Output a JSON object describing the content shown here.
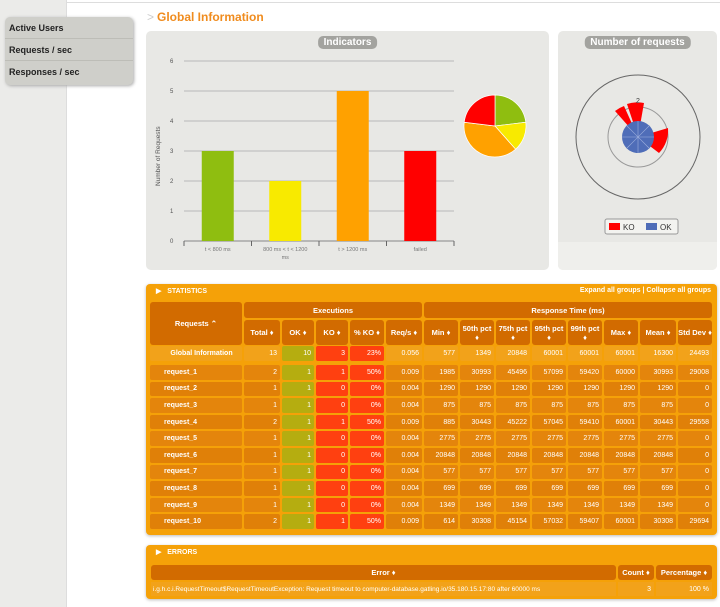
{
  "menu": [
    "Active Users",
    "Requests / sec",
    "Responses / sec"
  ],
  "page_title": "Global Information",
  "indicators": {
    "title": "Indicators"
  },
  "number_of_requests": {
    "title": "Number of requests",
    "label_2": "2",
    "legend": [
      "KO",
      "OK"
    ],
    "colors": {
      "KO": "#ff0000",
      "OK": "#4572a7"
    }
  },
  "chart_data": {
    "type": "bar",
    "title": "Indicators",
    "ylabel": "Number of Requests",
    "xlabel": "",
    "ylim": [
      0,
      6
    ],
    "yticks": [
      "0",
      "1",
      "2",
      "3",
      "4",
      "5",
      "6"
    ],
    "categories": [
      "t < 800 ms",
      "800 ms < t < 1200 ms",
      "t > 1200 ms",
      "failed"
    ],
    "values": [
      3,
      2,
      5,
      3
    ],
    "colors": [
      "#8fbe10",
      "#f8ea00",
      "#ffa100",
      "#ff0000"
    ]
  },
  "statistics": {
    "label": "STATISTICS",
    "expand": "Expand all groups",
    "sep": "|",
    "collapse": "Collapse all groups",
    "group_exec": "Executions",
    "group_resp": "Response Time (ms)",
    "headers": [
      "Requests ⌃",
      "Total ♦",
      "OK ♦",
      "KO ♦",
      "% KO ♦",
      "Req/s ♦",
      "Min ♦",
      "50th pct ♦",
      "75th pct ♦",
      "95th pct ♦",
      "99th pct ♦",
      "Max ♦",
      "Mean ♦",
      "Std Dev ♦"
    ],
    "rows": [
      [
        "Global Information",
        "13",
        "10",
        "3",
        "23%",
        "0.056",
        "577",
        "1349",
        "20848",
        "60001",
        "60001",
        "60001",
        "16300",
        "24493"
      ],
      [
        "request_1",
        "2",
        "1",
        "1",
        "50%",
        "0.009",
        "1985",
        "30993",
        "45496",
        "57099",
        "59420",
        "60000",
        "30993",
        "29008"
      ],
      [
        "request_2",
        "1",
        "1",
        "0",
        "0%",
        "0.004",
        "1290",
        "1290",
        "1290",
        "1290",
        "1290",
        "1290",
        "1290",
        "0"
      ],
      [
        "request_3",
        "1",
        "1",
        "0",
        "0%",
        "0.004",
        "875",
        "875",
        "875",
        "875",
        "875",
        "875",
        "875",
        "0"
      ],
      [
        "request_4",
        "2",
        "1",
        "1",
        "50%",
        "0.009",
        "885",
        "30443",
        "45222",
        "57045",
        "59410",
        "60001",
        "30443",
        "29558"
      ],
      [
        "request_5",
        "1",
        "1",
        "0",
        "0%",
        "0.004",
        "2775",
        "2775",
        "2775",
        "2775",
        "2775",
        "2775",
        "2775",
        "0"
      ],
      [
        "request_6",
        "1",
        "1",
        "0",
        "0%",
        "0.004",
        "20848",
        "20848",
        "20848",
        "20848",
        "20848",
        "20848",
        "20848",
        "0"
      ],
      [
        "request_7",
        "1",
        "1",
        "0",
        "0%",
        "0.004",
        "577",
        "577",
        "577",
        "577",
        "577",
        "577",
        "577",
        "0"
      ],
      [
        "request_8",
        "1",
        "1",
        "0",
        "0%",
        "0.004",
        "699",
        "699",
        "699",
        "699",
        "699",
        "699",
        "699",
        "0"
      ],
      [
        "request_9",
        "1",
        "1",
        "0",
        "0%",
        "0.004",
        "1349",
        "1349",
        "1349",
        "1349",
        "1349",
        "1349",
        "1349",
        "0"
      ],
      [
        "request_10",
        "2",
        "1",
        "1",
        "50%",
        "0.009",
        "614",
        "30308",
        "45154",
        "57032",
        "59407",
        "60001",
        "30308",
        "29694"
      ]
    ]
  },
  "errors": {
    "label": "ERRORS",
    "headers": [
      "Error ♦",
      "Count ♦",
      "Percentage ♦"
    ],
    "rows": [
      [
        "i.g.h.c.i.RequestTimeout$RequestTimeoutException: Request timeout to computer-database.gatling.io/35.180.15.17:80 after 60000 ms",
        "3",
        "100 %"
      ]
    ]
  }
}
